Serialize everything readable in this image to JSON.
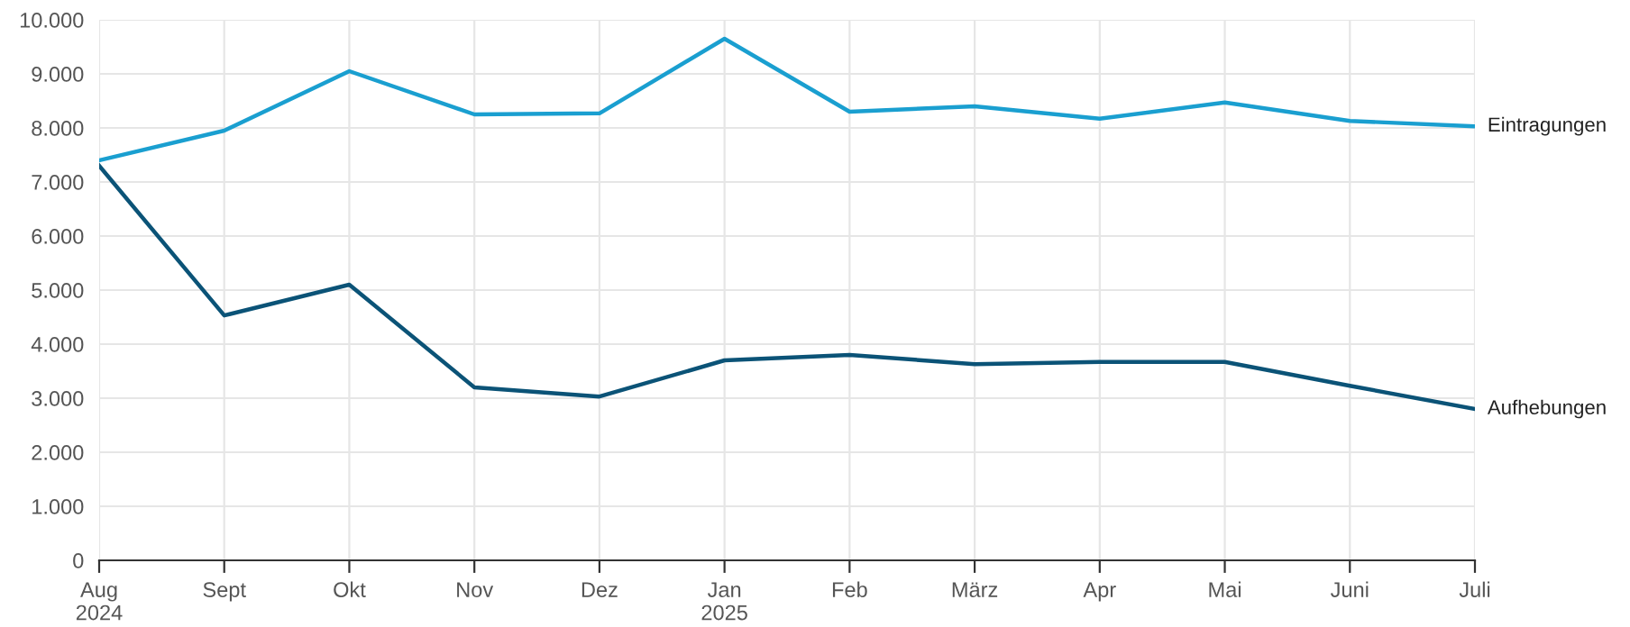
{
  "chart_data": {
    "type": "line",
    "categories": [
      "Aug\n2024",
      "Sept",
      "Okt",
      "Nov",
      "Dez",
      "Jan\n2025",
      "Feb",
      "März",
      "Apr",
      "Mai",
      "Juni",
      "Juli"
    ],
    "series": [
      {
        "name": "Eintragungen",
        "color": "#1a9fd0",
        "values": [
          7400,
          7950,
          9050,
          8250,
          8270,
          9650,
          8300,
          8400,
          8170,
          8470,
          8130,
          8030
        ]
      },
      {
        "name": "Aufhebungen",
        "color": "#0b5377",
        "values": [
          7300,
          4530,
          5100,
          3200,
          3030,
          3700,
          3800,
          3630,
          3670,
          3670,
          3230,
          2800
        ]
      }
    ],
    "ylim": [
      0,
      10000
    ],
    "yticks": [
      0,
      {
        "value": 1000,
        "label": "1.000"
      },
      {
        "value": 2000,
        "label": "2.000"
      },
      {
        "value": 3000,
        "label": "3.000"
      },
      {
        "value": 4000,
        "label": "4.000"
      },
      {
        "value": 5000,
        "label": "5.000"
      },
      {
        "value": 6000,
        "label": "6.000"
      },
      {
        "value": 7000,
        "label": "7.000"
      },
      {
        "value": 8000,
        "label": "8.000"
      },
      {
        "value": 9000,
        "label": "9.000"
      },
      {
        "value": 10000,
        "label": "10.000"
      }
    ],
    "grid": true,
    "legend": false,
    "marker": "none",
    "line_style": "solid"
  }
}
